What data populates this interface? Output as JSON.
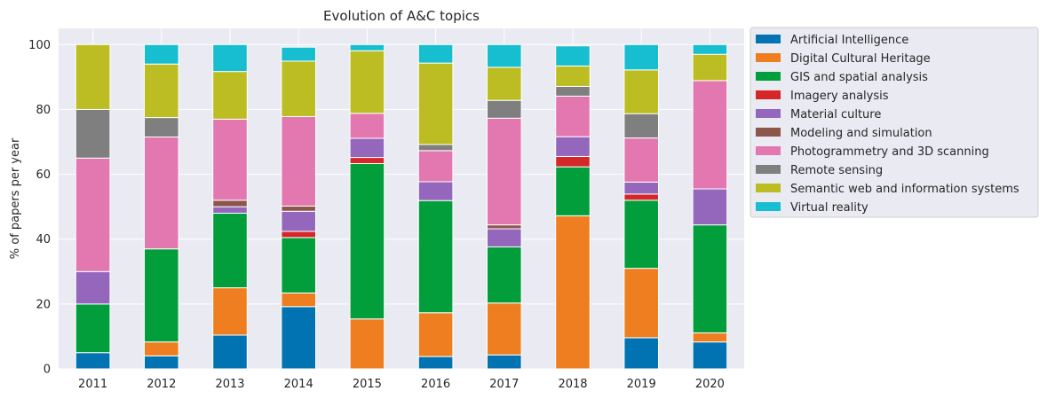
{
  "chart_data": {
    "type": "bar",
    "stacked": true,
    "title": "Evolution of A&C topics",
    "xlabel": "",
    "ylabel": "% of papers per year",
    "ylim": [
      0,
      105
    ],
    "yticks": [
      0,
      20,
      40,
      60,
      80,
      100
    ],
    "grid": true,
    "legend_position": "outside right, top",
    "categories": [
      "2011",
      "2012",
      "2013",
      "2014",
      "2015",
      "2016",
      "2017",
      "2018",
      "2019",
      "2020"
    ],
    "series": [
      {
        "name": "Artificial Intelligence",
        "color": "#0173b2",
        "values": [
          5,
          4,
          10.4,
          19.2,
          0,
          3.8,
          4.3,
          0,
          9.6,
          8.3
        ]
      },
      {
        "name": "Digital Cultural Heritage",
        "color": "#ee7e20",
        "values": [
          0,
          4.3,
          14.6,
          4.2,
          15.4,
          13.5,
          16.0,
          47.2,
          21.4,
          2.8
        ]
      },
      {
        "name": "GIS and spatial analysis",
        "color": "#029e3c",
        "values": [
          15,
          28.7,
          23.0,
          17.1,
          47.9,
          34.6,
          17.3,
          15.1,
          21.0,
          33.3
        ]
      },
      {
        "name": "Imagery analysis",
        "color": "#d62728",
        "values": [
          0,
          0,
          0,
          1.9,
          1.9,
          0,
          0,
          3.2,
          1.9,
          0
        ]
      },
      {
        "name": "Material culture",
        "color": "#9467bd",
        "values": [
          10,
          0,
          2.0,
          6.2,
          5.9,
          5.8,
          5.6,
          6.1,
          3.7,
          11.1
        ]
      },
      {
        "name": "Modeling and simulation",
        "color": "#8c564b",
        "values": [
          0,
          0,
          2.0,
          1.6,
          0,
          0,
          1.2,
          0,
          0,
          0
        ]
      },
      {
        "name": "Photogrammetry and 3D scanning",
        "color": "#e377b0",
        "values": [
          35,
          34.5,
          25.0,
          27.6,
          7.7,
          9.6,
          32.9,
          12.5,
          13.6,
          33.4
        ]
      },
      {
        "name": "Remote sensing",
        "color": "#7f7f7f",
        "values": [
          15,
          6.0,
          0,
          0,
          0,
          1.9,
          5.5,
          3.0,
          7.5,
          0
        ]
      },
      {
        "name": "Semantic web and information systems",
        "color": "#bcbd22",
        "values": [
          20,
          16.5,
          14.7,
          17.1,
          19.3,
          25.1,
          10.2,
          6.3,
          13.5,
          8.1
        ]
      },
      {
        "name": "Virtual reality",
        "color": "#17becf",
        "values": [
          0,
          6.0,
          8.3,
          4.3,
          1.9,
          5.7,
          7.0,
          6.2,
          7.8,
          3.0
        ]
      }
    ]
  }
}
